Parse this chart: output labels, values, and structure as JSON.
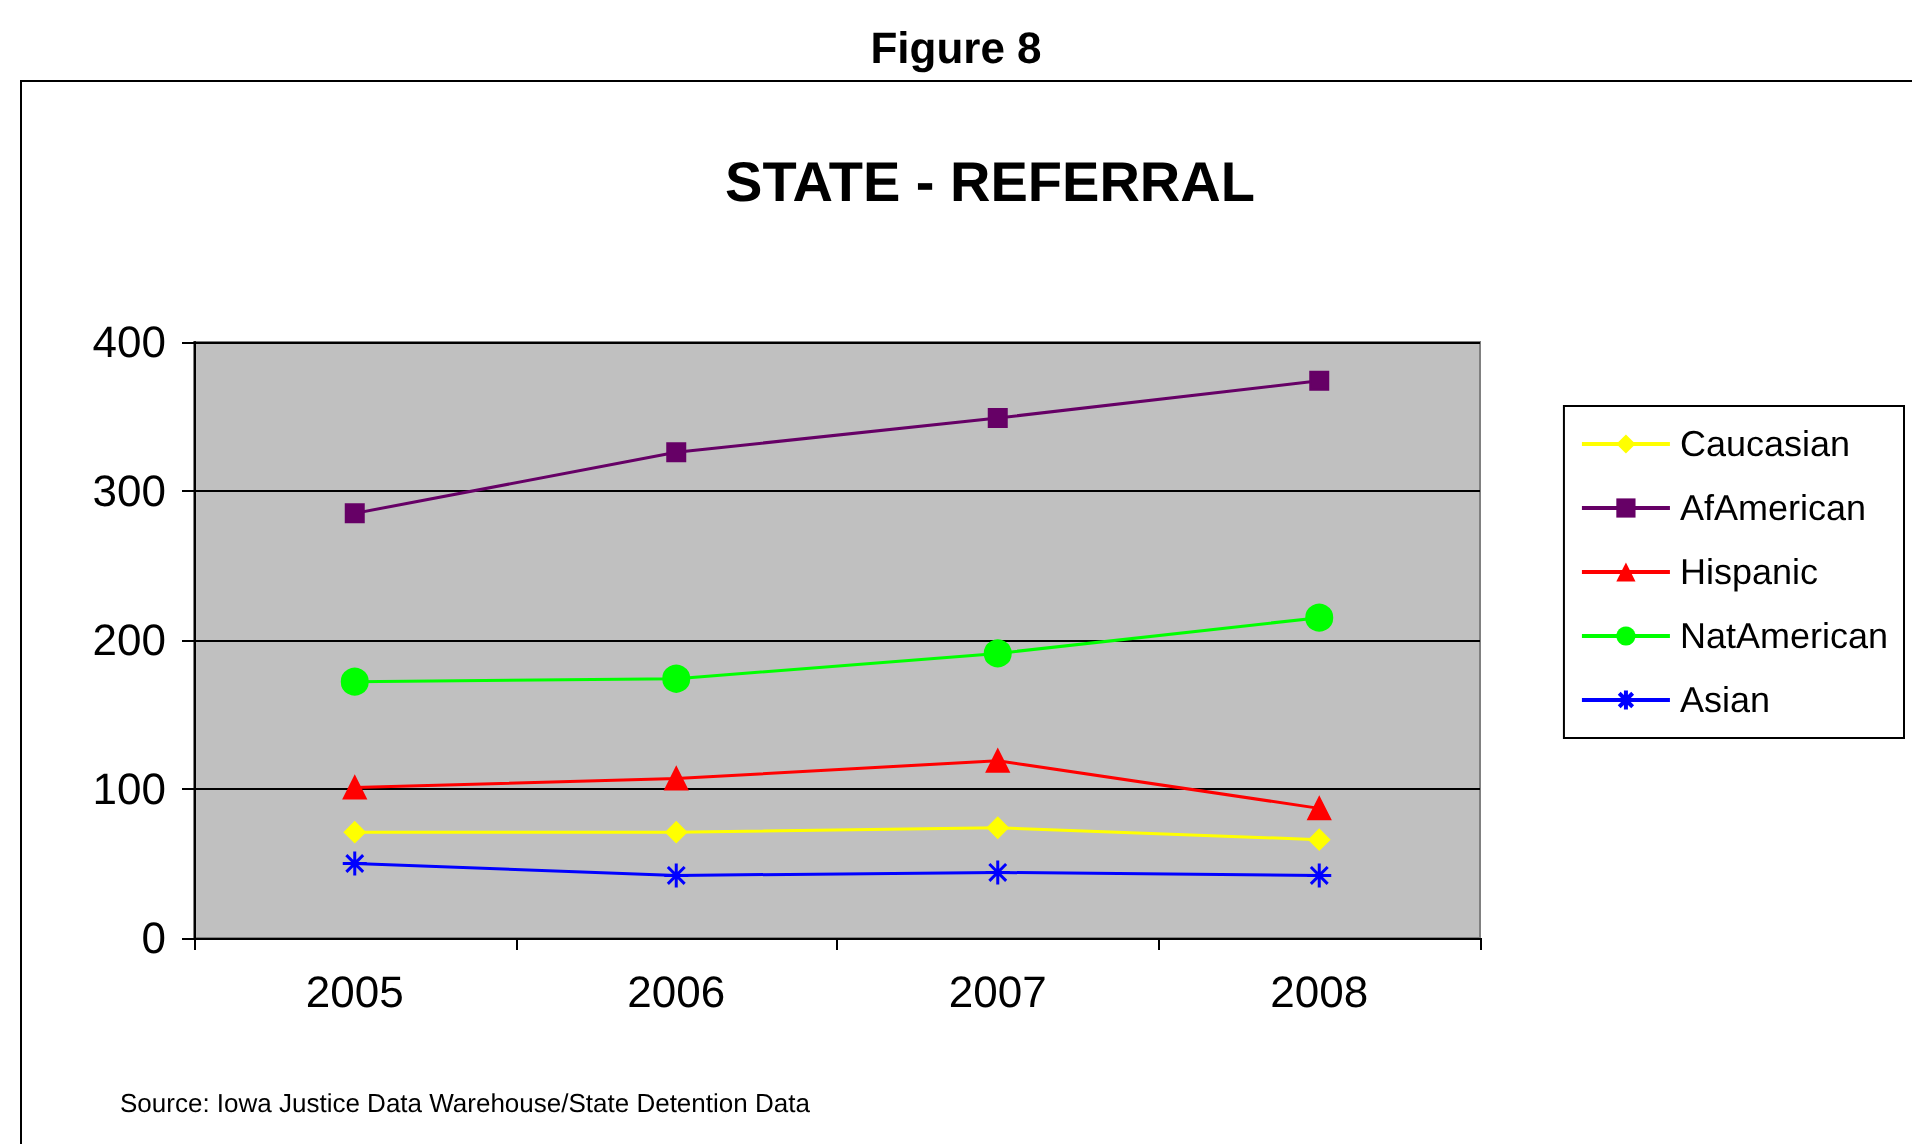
{
  "chart_data": {
    "type": "line",
    "title": "Figure 8",
    "subtitle": "STATE - REFERRAL",
    "categories": [
      "2005",
      "2006",
      "2007",
      "2008"
    ],
    "series": [
      {
        "name": "Caucasian",
        "color": "#ffff00",
        "marker": "diamond",
        "values": [
          71,
          71,
          74,
          66
        ]
      },
      {
        "name": "AfAmerican",
        "color": "#660066",
        "marker": "square",
        "values": [
          285,
          326,
          349,
          374
        ]
      },
      {
        "name": "Hispanic",
        "color": "#ff0000",
        "marker": "triangle",
        "values": [
          101,
          107,
          119,
          87
        ]
      },
      {
        "name": "NatAmerican",
        "color": "#00ff00",
        "marker": "circle",
        "values": [
          172,
          174,
          191,
          215
        ]
      },
      {
        "name": "Asian",
        "color": "#0000ff",
        "marker": "cross",
        "values": [
          50,
          42,
          44,
          42
        ]
      }
    ],
    "ylim": [
      0,
      400
    ],
    "yticks": [
      0,
      100,
      200,
      300,
      400
    ],
    "grid": "y",
    "legend": "right",
    "annotations": [
      "Source: Iowa Justice Data Warehouse/State Detention Data"
    ]
  }
}
